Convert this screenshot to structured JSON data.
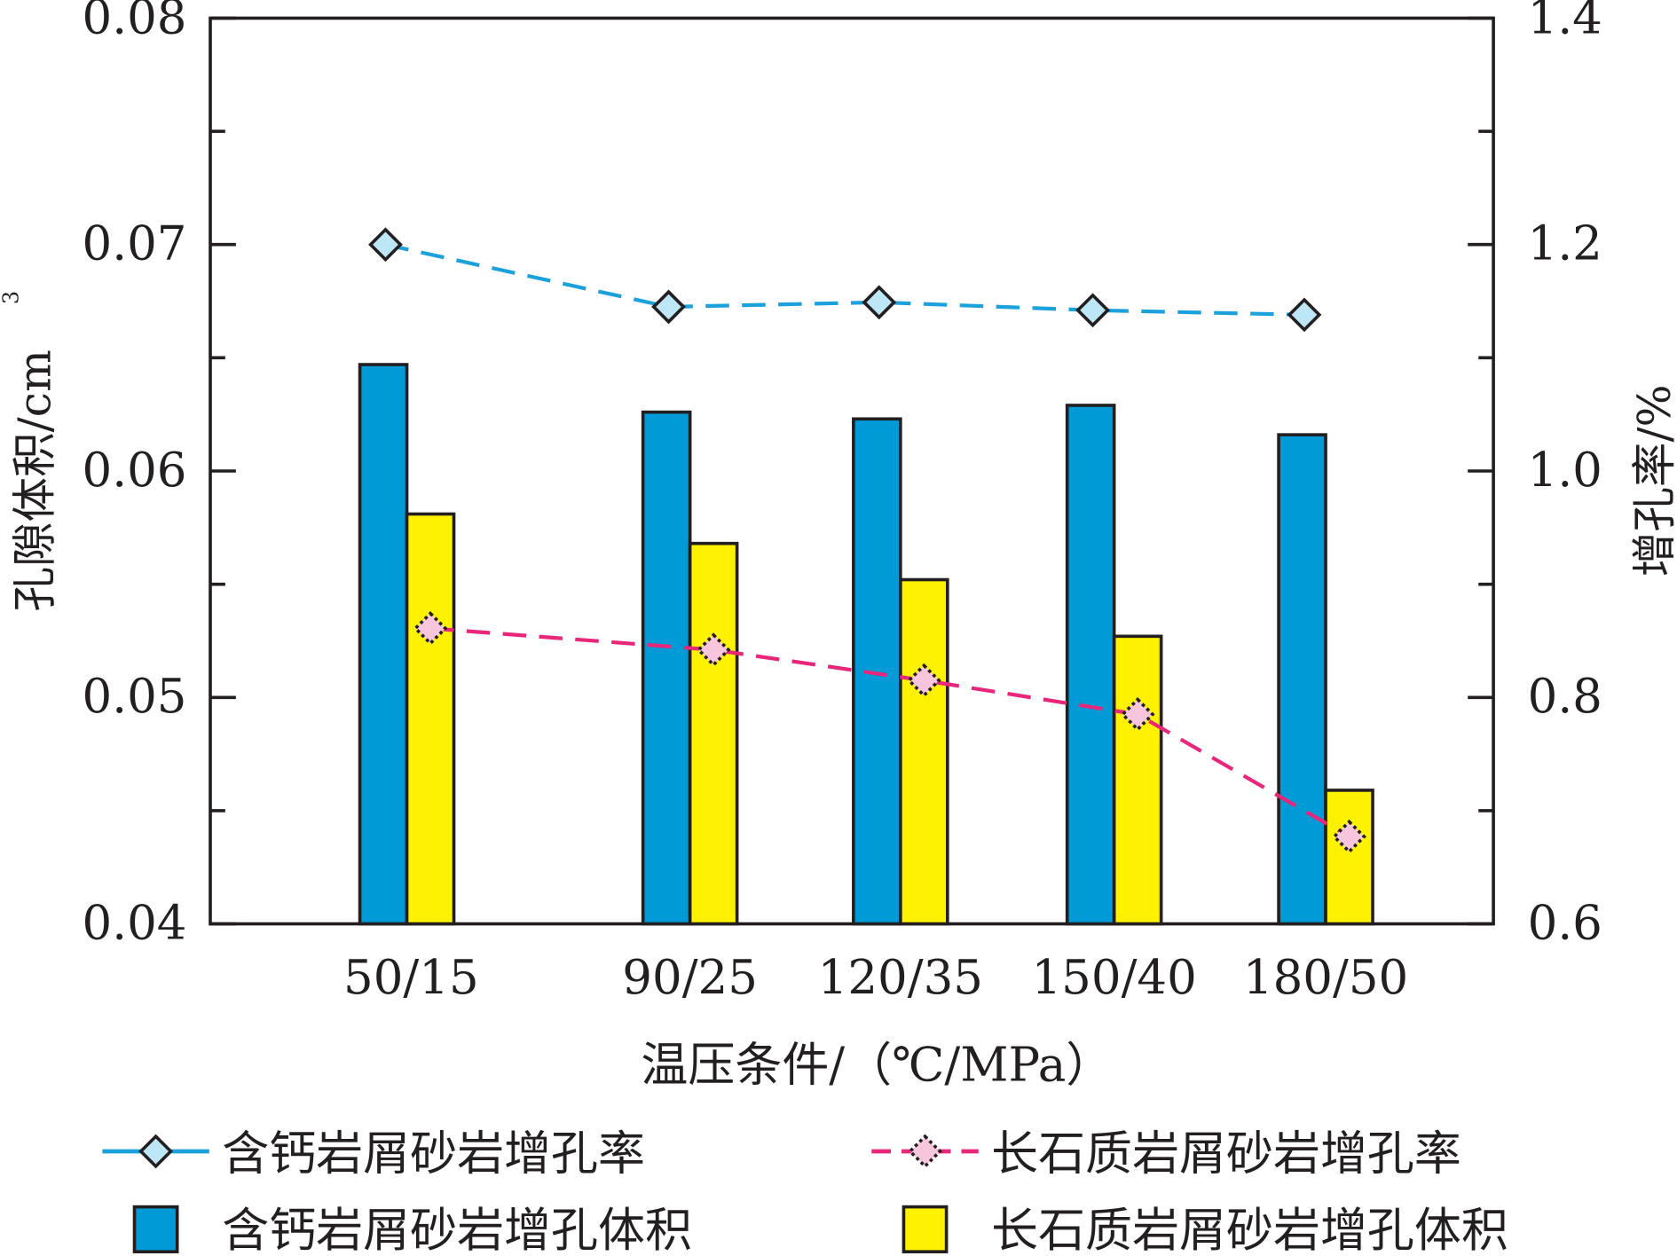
{
  "chart_data": {
    "type": "bar",
    "categories": [
      "50/15",
      "90/25",
      "120/35",
      "150/40",
      "180/50"
    ],
    "xlabel": "温压条件/（℃/MPa）",
    "ylabel": "孔隙体积/cm",
    "ylabel_sup": "3",
    "y2label": "增孔率/%",
    "ylim": [
      0.04,
      0.08
    ],
    "y2lim": [
      0.6,
      1.4
    ],
    "yticks": [
      "0.04",
      "0.05",
      "0.06",
      "0.07",
      "0.08"
    ],
    "y2ticks": [
      "0.6",
      "0.8",
      "1.0",
      "1.2",
      "1.4"
    ],
    "series": [
      {
        "name": "含钙岩屑砂岩增孔体积",
        "kind": "bar",
        "axis": "left",
        "color": "#009ad6",
        "values": [
          0.0647,
          0.0626,
          0.0623,
          0.0629,
          0.0616
        ]
      },
      {
        "name": "长石质岩屑砂岩增孔体积",
        "kind": "bar",
        "axis": "left",
        "color": "#fff200",
        "values": [
          0.0581,
          0.0568,
          0.0552,
          0.0527,
          0.0459
        ]
      },
      {
        "name": "含钙岩屑砂岩增孔率",
        "kind": "line",
        "axis": "right",
        "color": "#1ba1dc",
        "marker_fill": "#bde6f7",
        "values": [
          1.2,
          1.145,
          1.149,
          1.142,
          1.138
        ]
      },
      {
        "name": "长石质岩屑砂岩增孔率",
        "kind": "line",
        "axis": "right",
        "color": "#e8267a",
        "marker_fill": "#f7c6dc",
        "values": [
          0.861,
          0.842,
          0.815,
          0.785,
          0.677
        ]
      }
    ],
    "legend": "bottom"
  }
}
